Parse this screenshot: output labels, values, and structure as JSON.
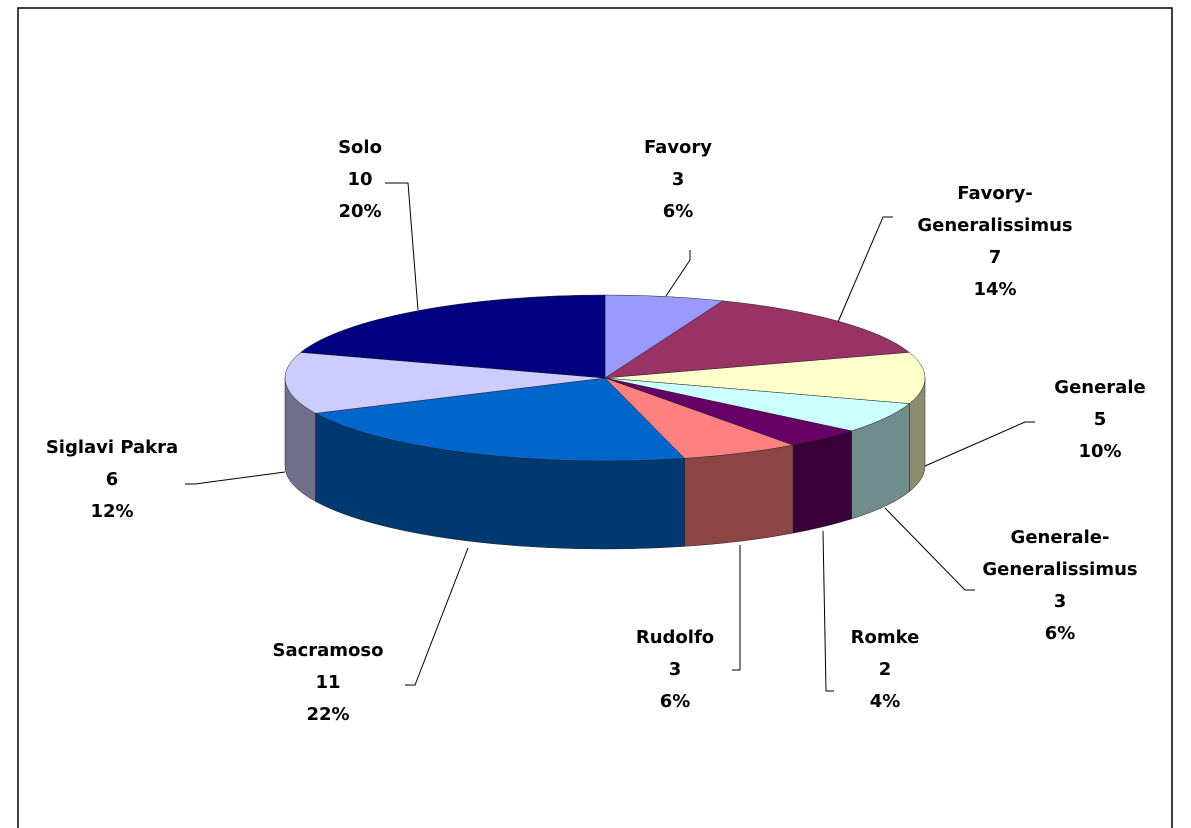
{
  "chart_data": {
    "type": "pie3d",
    "categories": [
      "Favory",
      "Favory-Generalissimus",
      "Generale",
      "Generale-Generalissimus",
      "Romke",
      "Rudolfo",
      "Sacramoso",
      "Siglavi Pakra",
      "Solo"
    ],
    "values": [
      3,
      7,
      5,
      3,
      2,
      3,
      11,
      6,
      10
    ],
    "percent_labels": [
      "6%",
      "14%",
      "10%",
      "6%",
      "4%",
      "6%",
      "22%",
      "12%",
      "20%"
    ],
    "colors": [
      "#9999ff",
      "#993366",
      "#ffffcc",
      "#ccffff",
      "#660066",
      "#ff8080",
      "#0066cc",
      "#ccccff",
      "#000080"
    ]
  }
}
